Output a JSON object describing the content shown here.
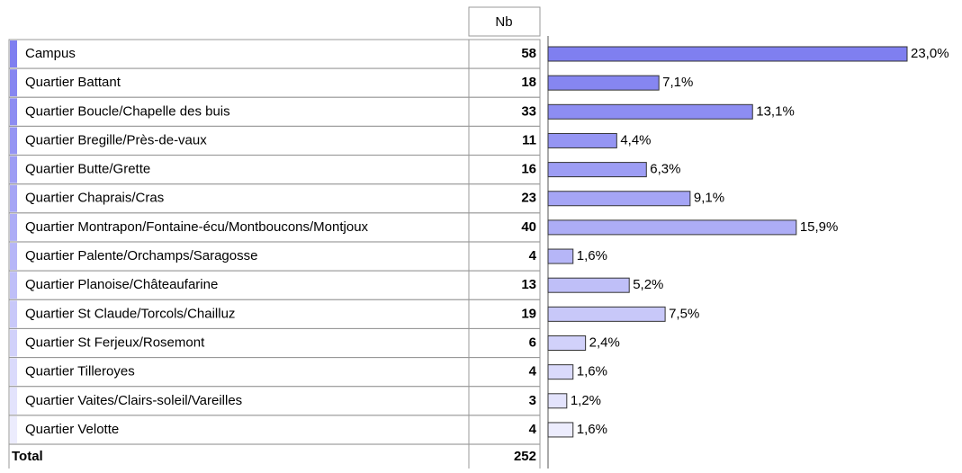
{
  "chart_data": {
    "type": "bar",
    "orientation": "horizontal",
    "count_header": "Nb",
    "categories": [
      "Campus",
      "Quartier Battant",
      "Quartier Boucle/Chapelle des buis",
      "Quartier Bregille/Près-de-vaux",
      "Quartier Butte/Grette",
      "Quartier Chaprais/Cras",
      "Quartier Montrapon/Fontaine-écu/Montboucons/Montjoux",
      "Quartier Palente/Orchamps/Saragosse",
      "Quartier Planoise/Châteaufarine",
      "Quartier St Claude/Torcols/Chailluz",
      "Quartier St Ferjeux/Rosemont",
      "Quartier Tilleroyes",
      "Quartier Vaites/Clairs-soleil/Vareilles",
      "Quartier Velotte"
    ],
    "counts": [
      58,
      18,
      33,
      11,
      16,
      23,
      40,
      4,
      13,
      19,
      6,
      4,
      3,
      4
    ],
    "values": [
      23.0,
      7.1,
      13.1,
      4.4,
      6.3,
      9.1,
      15.9,
      1.6,
      5.2,
      7.5,
      2.4,
      1.6,
      1.2,
      1.6
    ],
    "value_labels": [
      "23,0%",
      "7,1%",
      "13,1%",
      "4,4%",
      "6,3%",
      "9,1%",
      "15,9%",
      "1,6%",
      "5,2%",
      "7,5%",
      "2,4%",
      "1,6%",
      "1,2%",
      "1,6%"
    ],
    "colors": [
      "#7f7ff0",
      "#8686f1",
      "#8d8df2",
      "#9595f3",
      "#9d9df4",
      "#a5a5f5",
      "#adadf6",
      "#b6b6f7",
      "#bfbff8",
      "#c8c8f9",
      "#d1d1fa",
      "#dadafb",
      "#e3e3fc",
      "#ececfd"
    ],
    "total_label": "Total",
    "total": 252
  }
}
